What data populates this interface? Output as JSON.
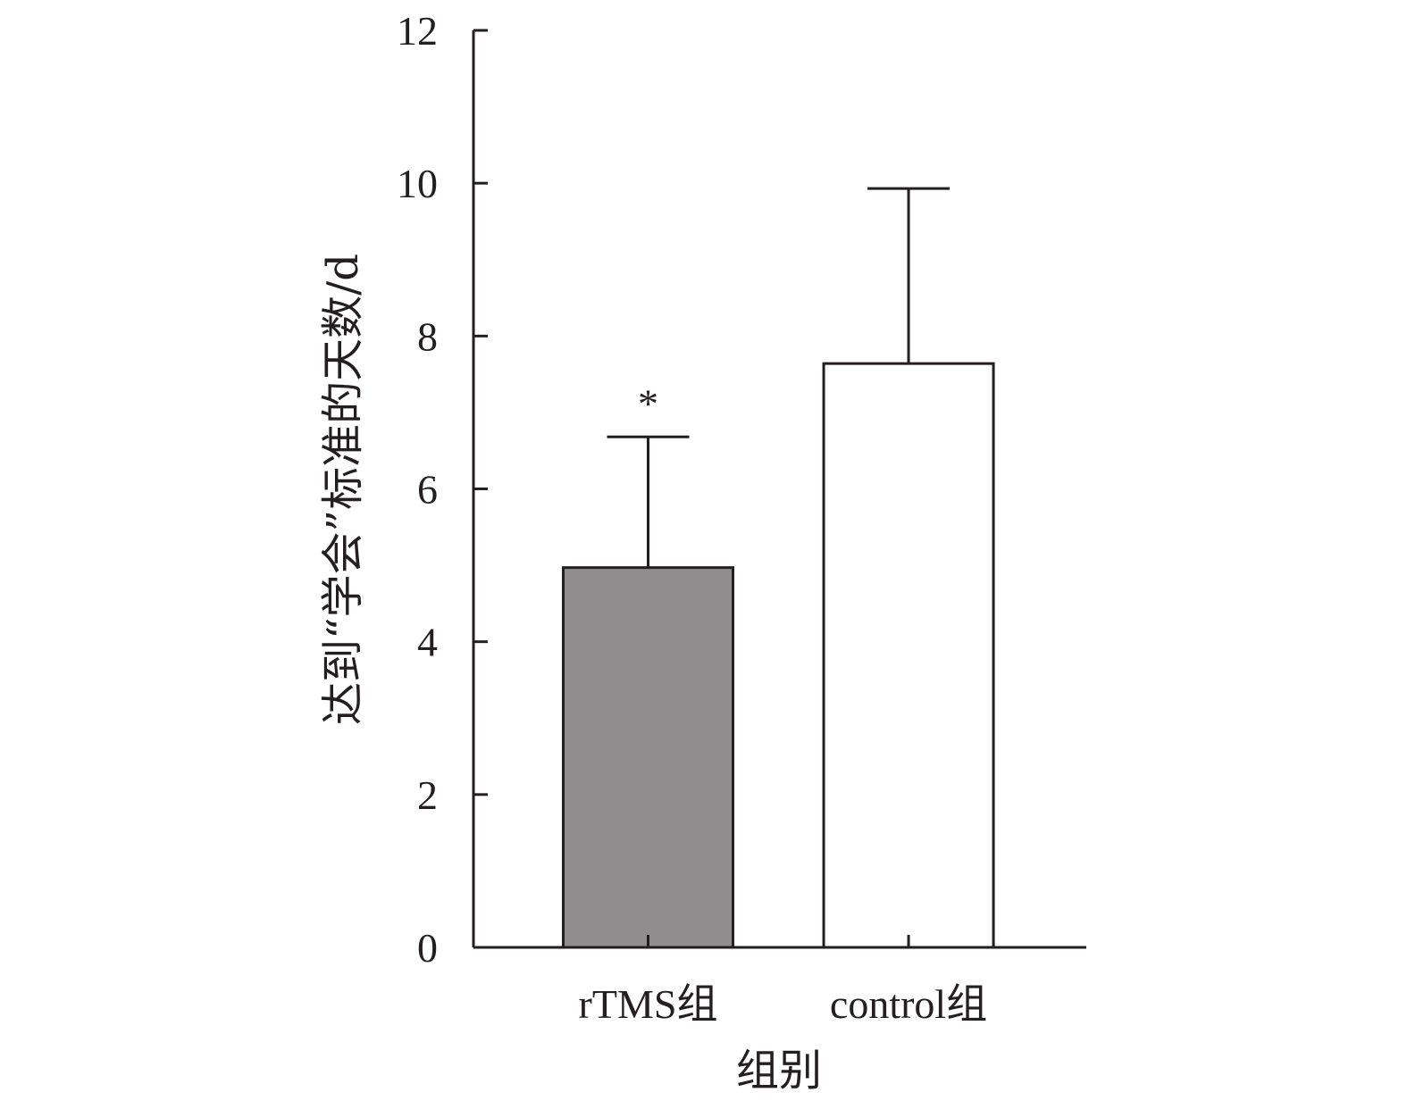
{
  "chart_data": {
    "type": "bar",
    "categories": [
      "rTMS组",
      "control组"
    ],
    "values": [
      4.97,
      7.64
    ],
    "error_upper": [
      6.68,
      9.93
    ],
    "bar_colors": [
      "#8f8d8e",
      "#ffffff"
    ],
    "annotations": [
      "*",
      ""
    ],
    "xlabel": "组别",
    "ylabel": "达到“学会”标准的天数/d",
    "ylim": [
      0,
      12
    ],
    "yticks": [
      0,
      2,
      4,
      6,
      8,
      10,
      12
    ],
    "grid": false
  }
}
